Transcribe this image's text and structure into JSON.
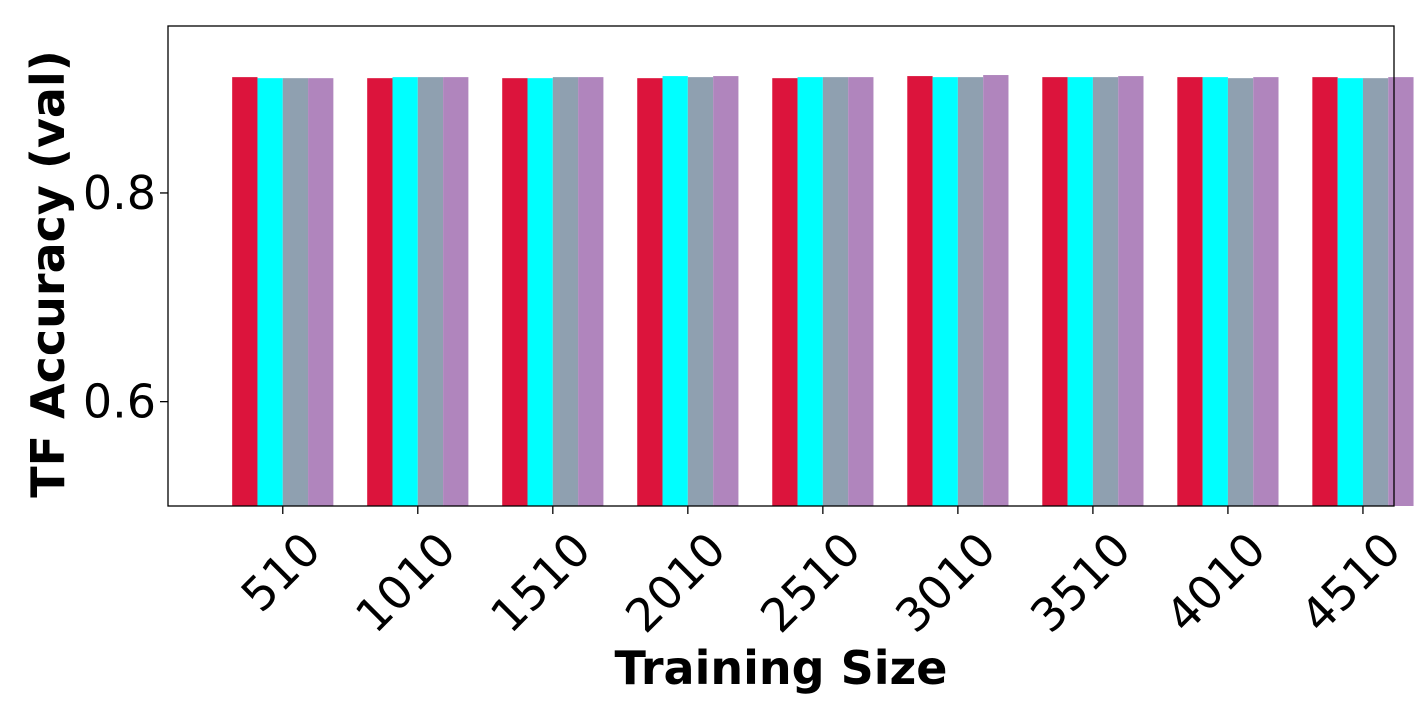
{
  "chart_data": {
    "type": "bar",
    "title": "",
    "xlabel": "Training Size",
    "ylabel": "TF Accuracy (val)",
    "categories": [
      "510",
      "1010",
      "1510",
      "2010",
      "2510",
      "3010",
      "3510",
      "4010",
      "4510"
    ],
    "ylim": [
      0.5,
      0.96
    ],
    "yticks": [
      0.6,
      0.8
    ],
    "ytick_labels": [
      "0.6",
      "0.8"
    ],
    "grid": false,
    "legend": "none",
    "series": [
      {
        "color": "#dc143c",
        "values": [
          0.911,
          0.91,
          0.91,
          0.91,
          0.91,
          0.912,
          0.911,
          0.911,
          0.911
        ]
      },
      {
        "color": "#00ffff",
        "values": [
          0.91,
          0.911,
          0.91,
          0.912,
          0.911,
          0.911,
          0.911,
          0.911,
          0.91
        ]
      },
      {
        "color": "#8fa0b0",
        "values": [
          0.91,
          0.911,
          0.911,
          0.911,
          0.911,
          0.911,
          0.911,
          0.91,
          0.91
        ]
      },
      {
        "color": "#b085bd",
        "values": [
          0.91,
          0.911,
          0.911,
          0.912,
          0.911,
          0.913,
          0.912,
          0.911,
          0.911
        ]
      }
    ]
  }
}
